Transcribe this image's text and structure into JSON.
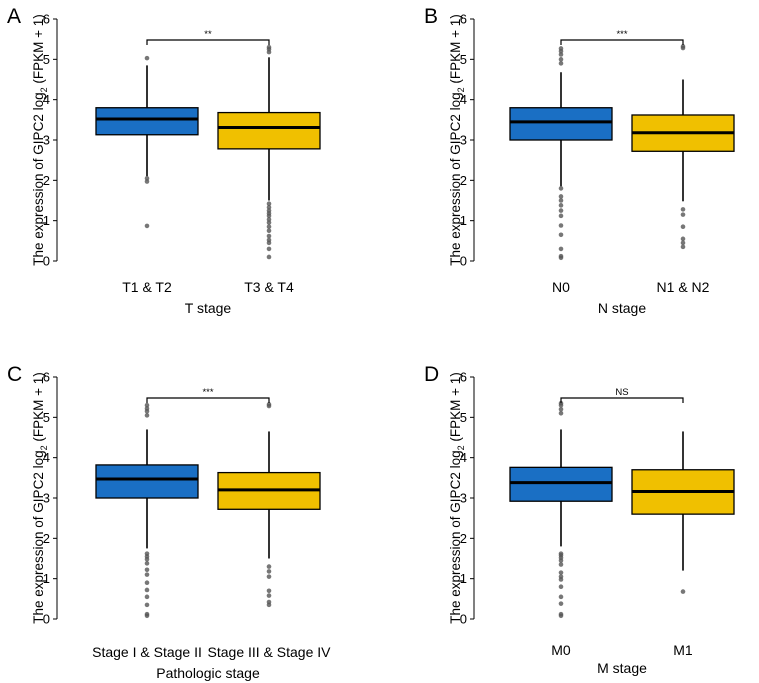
{
  "colors": {
    "box1": "#1a6fc4",
    "box2": "#f0c000",
    "outlier": "#555555"
  },
  "chart_data": [
    {
      "type": "box",
      "panel": "A",
      "ylabel": "The expression of GIPC2 log2 (FPKM + 1)",
      "ylabel_prefix": "The expression of GIPC2 log",
      "ylabel_sub": "2",
      "ylabel_suffix": " (FPKM + 1)",
      "xlabel": "T stage",
      "ylim": [
        0,
        6
      ],
      "yticks": [
        "0",
        "1",
        "2",
        "3",
        "4",
        "5",
        "6"
      ],
      "significance": "**",
      "categories": [
        "T1 & T2",
        "T3 & T4"
      ],
      "boxes": [
        {
          "q1": 3.13,
          "median": 3.52,
          "q3": 3.8,
          "whisker_low": 2.1,
          "whisker_high": 4.85,
          "outliers": [
            5.03,
            2.05,
            1.97,
            0.87
          ]
        },
        {
          "q1": 2.78,
          "median": 3.31,
          "q3": 3.68,
          "whisker_low": 1.5,
          "whisker_high": 5.05,
          "outliers": [
            5.3,
            5.25,
            5.18,
            1.42,
            1.33,
            1.25,
            1.18,
            1.12,
            1.03,
            0.95,
            0.85,
            0.75,
            0.62,
            0.52,
            0.45,
            0.3,
            0.1
          ]
        }
      ]
    },
    {
      "type": "box",
      "panel": "B",
      "ylabel": "The expression of GIPC2 log2 (FPKM + 1)",
      "ylabel_prefix": "The expression of GIPC2 log",
      "ylabel_sub": "2",
      "ylabel_suffix": " (FPKM + 1)",
      "xlabel": "N stage",
      "ylim": [
        0,
        6
      ],
      "yticks": [
        "0",
        "1",
        "2",
        "3",
        "4",
        "5",
        "6"
      ],
      "significance": "***",
      "categories": [
        "N0",
        "N1 & N2"
      ],
      "boxes": [
        {
          "q1": 3.0,
          "median": 3.45,
          "q3": 3.8,
          "whisker_low": 1.85,
          "whisker_high": 4.68,
          "outliers": [
            5.27,
            5.2,
            5.12,
            5.0,
            4.9,
            1.8,
            1.6,
            1.5,
            1.38,
            1.25,
            1.12,
            0.88,
            0.65,
            0.3,
            0.12,
            0.08
          ]
        },
        {
          "q1": 2.72,
          "median": 3.18,
          "q3": 3.62,
          "whisker_low": 1.48,
          "whisker_high": 4.5,
          "outliers": [
            5.32,
            5.28,
            1.28,
            1.15,
            0.85,
            0.55,
            0.45,
            0.35
          ]
        }
      ]
    },
    {
      "type": "box",
      "panel": "C",
      "ylabel": "The expression of GIPC2 log2 (FPKM + 1)",
      "ylabel_prefix": "The expression of GIPC2 log",
      "ylabel_sub": "2",
      "ylabel_suffix": " (FPKM + 1)",
      "xlabel": "Pathologic stage",
      "ylim": [
        0,
        6
      ],
      "yticks": [
        "0",
        "1",
        "2",
        "3",
        "4",
        "5",
        "6"
      ],
      "significance": "***",
      "categories": [
        "Stage I & Stage II",
        "Stage III & Stage IV"
      ],
      "boxes": [
        {
          "q1": 3.0,
          "median": 3.47,
          "q3": 3.82,
          "whisker_low": 1.75,
          "whisker_high": 4.7,
          "outliers": [
            5.3,
            5.22,
            5.15,
            5.05,
            1.62,
            1.55,
            1.48,
            1.38,
            1.22,
            1.1,
            0.9,
            0.72,
            0.55,
            0.35,
            0.12,
            0.08
          ]
        },
        {
          "q1": 2.72,
          "median": 3.2,
          "q3": 3.63,
          "whisker_low": 1.5,
          "whisker_high": 4.65,
          "outliers": [
            5.32,
            5.28,
            1.3,
            1.18,
            1.05,
            0.7,
            0.58,
            0.42,
            0.35
          ]
        }
      ]
    },
    {
      "type": "box",
      "panel": "D",
      "ylabel": "The expression of GIPC2 log2 (FPKM + 1)",
      "ylabel_prefix": "The expression of GIPC2 log",
      "ylabel_sub": "2",
      "ylabel_suffix": " (FPKM + 1)",
      "xlabel": "M stage",
      "ylim": [
        0,
        6
      ],
      "yticks": [
        "0",
        "1",
        "2",
        "3",
        "4",
        "5",
        "6"
      ],
      "significance": "NS",
      "categories": [
        "M0",
        "M1"
      ],
      "boxes": [
        {
          "q1": 2.92,
          "median": 3.38,
          "q3": 3.76,
          "whisker_low": 1.8,
          "whisker_high": 4.7,
          "outliers": [
            5.35,
            5.3,
            5.2,
            5.1,
            1.62,
            1.58,
            1.52,
            1.45,
            1.35,
            1.15,
            1.05,
            0.98,
            0.8,
            0.55,
            0.38,
            0.12,
            0.08
          ]
        },
        {
          "q1": 2.6,
          "median": 3.16,
          "q3": 3.7,
          "whisker_low": 1.2,
          "whisker_high": 4.65,
          "outliers": [
            0.68
          ]
        }
      ]
    }
  ]
}
